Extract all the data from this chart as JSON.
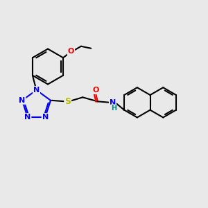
{
  "bg_color": "#e9e9e9",
  "bond_color": "#000000",
  "bond_width": 1.5,
  "atom_colors": {
    "N": "#0000ee",
    "O": "#ee0000",
    "S": "#bbbb00",
    "H": "#008888",
    "C": "#000000"
  },
  "font_size": 8.0,
  "fig_size": [
    3.0,
    3.0
  ],
  "dpi": 100,
  "scale": 1.0
}
